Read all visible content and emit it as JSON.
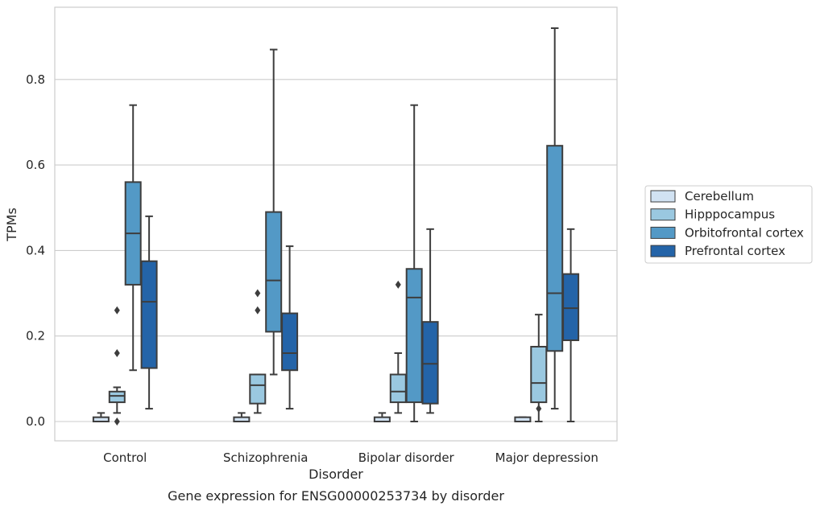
{
  "chart_data": {
    "type": "boxplot",
    "title": "Gene expression for ENSG00000253734 by disorder",
    "xlabel": "Disorder",
    "ylabel": "TPMs",
    "ylim": [
      -0.045,
      0.96
    ],
    "yticks": [
      0.0,
      0.2,
      0.4,
      0.6,
      0.8
    ],
    "ytick_labels": [
      "0.0",
      "0.2",
      "0.4",
      "0.6",
      "0.8"
    ],
    "grid": "horizontal",
    "legend_position": "right",
    "categories": [
      "Control",
      "Schizophrenia",
      "Bipolar disorder",
      "Major depression"
    ],
    "series": [
      {
        "name": "Cerebellum",
        "color": "#d1e2f2",
        "boxes": [
          {
            "whislo": 0.0,
            "q1": 0.0,
            "med": 0.0,
            "q3": 0.01,
            "whishi": 0.02,
            "fliers": []
          },
          {
            "whislo": 0.0,
            "q1": 0.0,
            "med": 0.0,
            "q3": 0.01,
            "whishi": 0.02,
            "fliers": []
          },
          {
            "whislo": 0.0,
            "q1": 0.0,
            "med": 0.0,
            "q3": 0.01,
            "whishi": 0.02,
            "fliers": []
          },
          {
            "whislo": 0.0,
            "q1": 0.0,
            "med": 0.0,
            "q3": 0.01,
            "whishi": 0.01,
            "fliers": []
          }
        ]
      },
      {
        "name": "Hipppocampus",
        "color": "#9ac8e0",
        "boxes": [
          {
            "whislo": 0.02,
            "q1": 0.045,
            "med": 0.06,
            "q3": 0.07,
            "whishi": 0.08,
            "fliers": [
              0.0,
              0.16,
              0.26
            ]
          },
          {
            "whislo": 0.02,
            "q1": 0.042,
            "med": 0.085,
            "q3": 0.11,
            "whishi": 0.11,
            "fliers": [
              0.26,
              0.3
            ]
          },
          {
            "whislo": 0.02,
            "q1": 0.045,
            "med": 0.07,
            "q3": 0.11,
            "whishi": 0.16,
            "fliers": [
              0.32
            ]
          },
          {
            "whislo": 0.0,
            "q1": 0.045,
            "med": 0.09,
            "q3": 0.175,
            "whishi": 0.25,
            "fliers": [
              0.03
            ]
          }
        ]
      },
      {
        "name": "Orbitofrontal cortex",
        "color": "#5399c6",
        "boxes": [
          {
            "whislo": 0.12,
            "q1": 0.32,
            "med": 0.44,
            "q3": 0.56,
            "whishi": 0.74,
            "fliers": []
          },
          {
            "whislo": 0.11,
            "q1": 0.21,
            "med": 0.33,
            "q3": 0.49,
            "whishi": 0.87,
            "fliers": []
          },
          {
            "whislo": 0.0,
            "q1": 0.045,
            "med": 0.29,
            "q3": 0.357,
            "whishi": 0.74,
            "fliers": []
          },
          {
            "whislo": 0.03,
            "q1": 0.165,
            "med": 0.3,
            "q3": 0.645,
            "whishi": 0.92,
            "fliers": []
          }
        ]
      },
      {
        "name": "Prefrontal cortex",
        "color": "#2464a8",
        "boxes": [
          {
            "whislo": 0.03,
            "q1": 0.125,
            "med": 0.28,
            "q3": 0.375,
            "whishi": 0.48,
            "fliers": []
          },
          {
            "whislo": 0.03,
            "q1": 0.12,
            "med": 0.16,
            "q3": 0.253,
            "whishi": 0.41,
            "fliers": []
          },
          {
            "whislo": 0.02,
            "q1": 0.042,
            "med": 0.135,
            "q3": 0.233,
            "whishi": 0.45,
            "fliers": []
          },
          {
            "whislo": 0.0,
            "q1": 0.19,
            "med": 0.265,
            "q3": 0.345,
            "whishi": 0.45,
            "fliers": []
          }
        ]
      }
    ]
  }
}
